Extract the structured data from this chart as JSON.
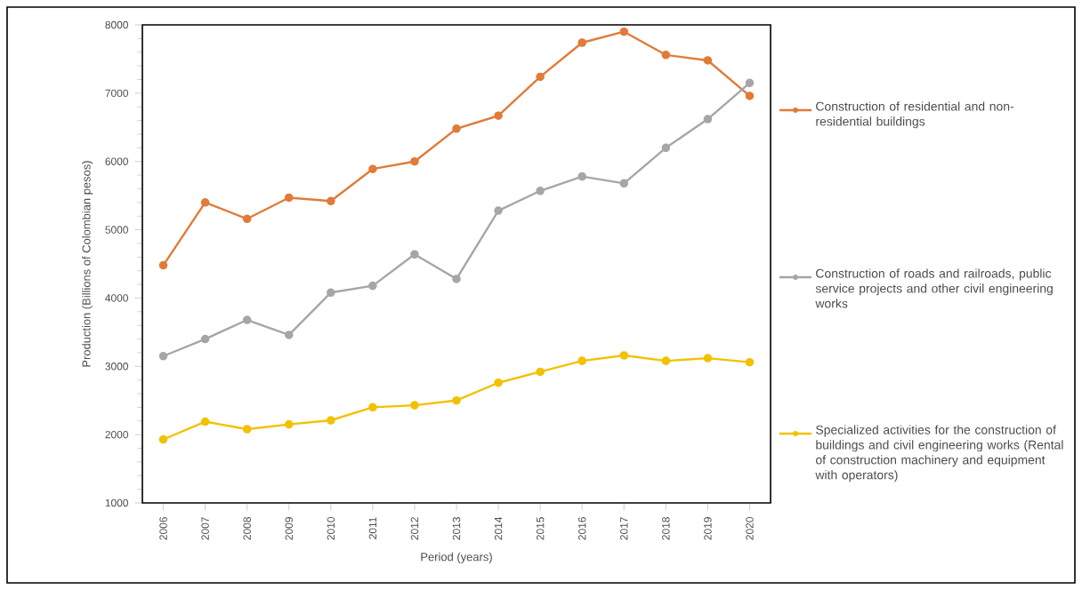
{
  "chart_data": {
    "type": "line",
    "xlabel": "Period (years)",
    "ylabel": "Production (Billions of Colombian pesos)",
    "categories": [
      "2006",
      "2007",
      "2008",
      "2009",
      "2010",
      "2011",
      "2012",
      "2013",
      "2014",
      "2015",
      "2016",
      "2017",
      "2018",
      "2019",
      "2020"
    ],
    "series": [
      {
        "name": "Construction of residential and non-residential buildings",
        "color": "#e07b39",
        "values": [
          4480,
          5400,
          5160,
          5470,
          5420,
          5890,
          6000,
          6480,
          6670,
          7240,
          7740,
          7900,
          7560,
          7480,
          6960
        ]
      },
      {
        "name": "Construction of roads and railroads, public service projects and other civil engineering works",
        "color": "#a6a6a6",
        "values": [
          3150,
          3400,
          3680,
          3460,
          4080,
          4180,
          4640,
          4280,
          5280,
          5570,
          5780,
          5680,
          6200,
          6620,
          7150
        ]
      },
      {
        "name": "Specialized activities for the construction of buildings and civil engineering works (Rental of construction machinery and equipment with operators)",
        "color": "#f2c100",
        "values": [
          1930,
          2190,
          2080,
          2150,
          2210,
          2400,
          2430,
          2500,
          2760,
          2920,
          3080,
          3160,
          3080,
          3120,
          3060
        ]
      }
    ],
    "ylim": [
      1000,
      8000
    ],
    "yticks": [
      1000,
      2000,
      3000,
      4000,
      5000,
      6000,
      7000,
      8000
    ],
    "marker": "circle",
    "legend": "right",
    "grid": false
  }
}
